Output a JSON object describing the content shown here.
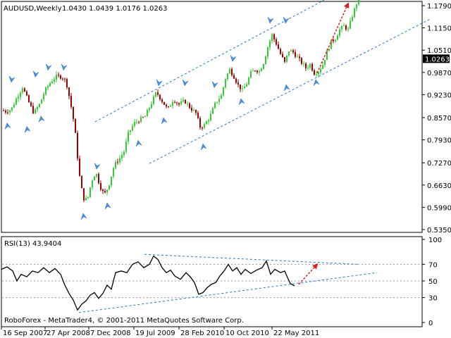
{
  "chart_data": [
    {
      "type": "candlestick",
      "symbol_title": "AUDUSD,Weekly",
      "ohlc_readout": "1.0430 1.0439 1.0176 1.0263",
      "last_price_label": "1.0263",
      "y_ticks": [
        "1.1790",
        "1.1150",
        "1.0510",
        "0.9870",
        "0.9230",
        "0.8570",
        "0.7930",
        "0.7270",
        "0.6630",
        "0.5990",
        "0.5350"
      ],
      "ylim": [
        0.535,
        1.179
      ],
      "x_ticks": [
        "16 Sep 2007",
        "27 Apr 2008",
        "7 Dec 2008",
        "19 Jul 2009",
        "28 Feb 2010",
        "10 Oct 2010",
        "22 May 2011"
      ],
      "colors": {
        "bull": "#32cd32",
        "bear": "#a00000",
        "channel": "#1e78dc",
        "arrow": "#e02020",
        "fractal": "#4a90e2"
      },
      "close_path": [
        [
          0,
          0.88
        ],
        [
          8,
          0.875
        ],
        [
          16,
          0.88
        ],
        [
          24,
          0.915
        ],
        [
          32,
          0.945
        ],
        [
          40,
          0.905
        ],
        [
          48,
          0.87
        ],
        [
          56,
          0.895
        ],
        [
          64,
          0.935
        ],
        [
          72,
          0.96
        ],
        [
          80,
          0.975
        ],
        [
          88,
          0.975
        ],
        [
          94,
          0.96
        ],
        [
          100,
          0.9
        ],
        [
          106,
          0.83
        ],
        [
          112,
          0.7
        ],
        [
          118,
          0.625
        ],
        [
          124,
          0.62
        ],
        [
          130,
          0.675
        ],
        [
          136,
          0.7
        ],
        [
          142,
          0.66
        ],
        [
          148,
          0.635
        ],
        [
          154,
          0.66
        ],
        [
          162,
          0.72
        ],
        [
          170,
          0.74
        ],
        [
          176,
          0.76
        ],
        [
          182,
          0.81
        ],
        [
          190,
          0.84
        ],
        [
          198,
          0.85
        ],
        [
          206,
          0.86
        ],
        [
          214,
          0.895
        ],
        [
          222,
          0.93
        ],
        [
          230,
          0.905
        ],
        [
          238,
          0.88
        ],
        [
          246,
          0.91
        ],
        [
          254,
          0.895
        ],
        [
          262,
          0.905
        ],
        [
          270,
          0.885
        ],
        [
          278,
          0.87
        ],
        [
          284,
          0.83
        ],
        [
          290,
          0.835
        ],
        [
          298,
          0.86
        ],
        [
          306,
          0.9
        ],
        [
          314,
          0.92
        ],
        [
          320,
          0.97
        ],
        [
          326,
          0.995
        ],
        [
          332,
          0.975
        ],
        [
          338,
          0.95
        ],
        [
          344,
          0.935
        ],
        [
          350,
          0.955
        ],
        [
          356,
          0.985
        ],
        [
          362,
          0.995
        ],
        [
          368,
          0.99
        ],
        [
          374,
          1.015
        ],
        [
          380,
          1.06
        ],
        [
          386,
          1.095
        ],
        [
          392,
          1.07
        ],
        [
          398,
          1.04
        ],
        [
          404,
          1.015
        ],
        [
          410,
          1.05
        ],
        [
          416,
          1.045
        ],
        [
          422,
          1.03
        ],
        [
          428,
          1.015
        ],
        [
          434,
          1.0
        ],
        [
          440,
          1.01
        ],
        [
          446,
          0.985
        ],
        [
          452,
          0.99
        ],
        [
          458,
          1.01
        ],
        [
          464,
          1.045
        ],
        [
          470,
          1.075
        ],
        [
          476,
          1.085
        ],
        [
          482,
          1.11
        ],
        [
          488,
          1.12
        ],
        [
          494,
          1.11
        ],
        [
          500,
          1.15
        ],
        [
          506,
          1.185
        ],
        [
          510,
          1.195
        ]
      ],
      "channel_lines": [
        {
          "from": [
            135,
            0.845
          ],
          "to": [
            460,
            1.195
          ]
        },
        {
          "from": [
            212,
            0.725
          ],
          "to": [
            610,
            1.14
          ]
        }
      ],
      "fractal_up": [
        [
          16,
          0.95
        ],
        [
          50,
          0.965
        ],
        [
          68,
          0.985
        ],
        [
          90,
          0.985
        ],
        [
          137,
          0.7
        ],
        [
          225,
          0.94
        ],
        [
          262,
          0.94
        ],
        [
          304,
          0.935
        ],
        [
          330,
          1.01
        ],
        [
          383,
          1.12
        ],
        [
          405,
          1.12
        ]
      ],
      "fractal_down": [
        [
          10,
          0.85
        ],
        [
          38,
          0.84
        ],
        [
          58,
          0.87
        ],
        [
          118,
          0.59
        ],
        [
          152,
          0.62
        ],
        [
          196,
          0.8
        ],
        [
          232,
          0.865
        ],
        [
          288,
          0.79
        ],
        [
          342,
          0.92
        ],
        [
          406,
          0.96
        ],
        [
          448,
          0.975
        ]
      ],
      "forecast_arrow": {
        "from": [
          450,
          0.985
        ],
        "to": [
          494,
          1.185
        ]
      }
    },
    {
      "type": "line",
      "indicator_title": "RSI(13) 43.9404",
      "y_ticks": [
        "100",
        "70",
        "50",
        "30",
        "0"
      ],
      "ylim": [
        0,
        100
      ],
      "levels": [
        70,
        50,
        30
      ],
      "rsi_path": [
        [
          2,
          64
        ],
        [
          10,
          67
        ],
        [
          18,
          62
        ],
        [
          24,
          50
        ],
        [
          30,
          58
        ],
        [
          38,
          55
        ],
        [
          46,
          62
        ],
        [
          54,
          60
        ],
        [
          62,
          66
        ],
        [
          70,
          60
        ],
        [
          78,
          65
        ],
        [
          86,
          58
        ],
        [
          92,
          45
        ],
        [
          98,
          35
        ],
        [
          104,
          27
        ],
        [
          110,
          15
        ],
        [
          116,
          22
        ],
        [
          122,
          26
        ],
        [
          128,
          33
        ],
        [
          134,
          36
        ],
        [
          140,
          29
        ],
        [
          146,
          35
        ],
        [
          152,
          45
        ],
        [
          158,
          40
        ],
        [
          164,
          60
        ],
        [
          172,
          62
        ],
        [
          180,
          60
        ],
        [
          188,
          70
        ],
        [
          196,
          73
        ],
        [
          204,
          66
        ],
        [
          212,
          70
        ],
        [
          218,
          80
        ],
        [
          224,
          76
        ],
        [
          230,
          66
        ],
        [
          236,
          60
        ],
        [
          242,
          63
        ],
        [
          248,
          56
        ],
        [
          256,
          52
        ],
        [
          264,
          60
        ],
        [
          270,
          55
        ],
        [
          276,
          48
        ],
        [
          282,
          34
        ],
        [
          288,
          36
        ],
        [
          294,
          42
        ],
        [
          300,
          46
        ],
        [
          306,
          48
        ],
        [
          312,
          56
        ],
        [
          318,
          62
        ],
        [
          324,
          70
        ],
        [
          330,
          62
        ],
        [
          336,
          66
        ],
        [
          342,
          58
        ],
        [
          348,
          64
        ],
        [
          356,
          59
        ],
        [
          364,
          63
        ],
        [
          372,
          66
        ],
        [
          378,
          74
        ],
        [
          384,
          58
        ],
        [
          390,
          64
        ],
        [
          398,
          60
        ],
        [
          404,
          62
        ],
        [
          408,
          54
        ],
        [
          412,
          47
        ],
        [
          418,
          44
        ]
      ],
      "trend_lines": [
        {
          "from": [
            205,
            82
          ],
          "to": [
            510,
            70
          ]
        },
        {
          "from": [
            112,
            12
          ],
          "to": [
            535,
            60
          ]
        }
      ],
      "forecast_arrow": {
        "from": [
          424,
          46
        ],
        "to": [
          450,
          70
        ]
      }
    }
  ],
  "footer": {
    "copyright": "RoboForex - MetaTrader4, © 2001-2011 MetaQuotes Software Corp."
  }
}
